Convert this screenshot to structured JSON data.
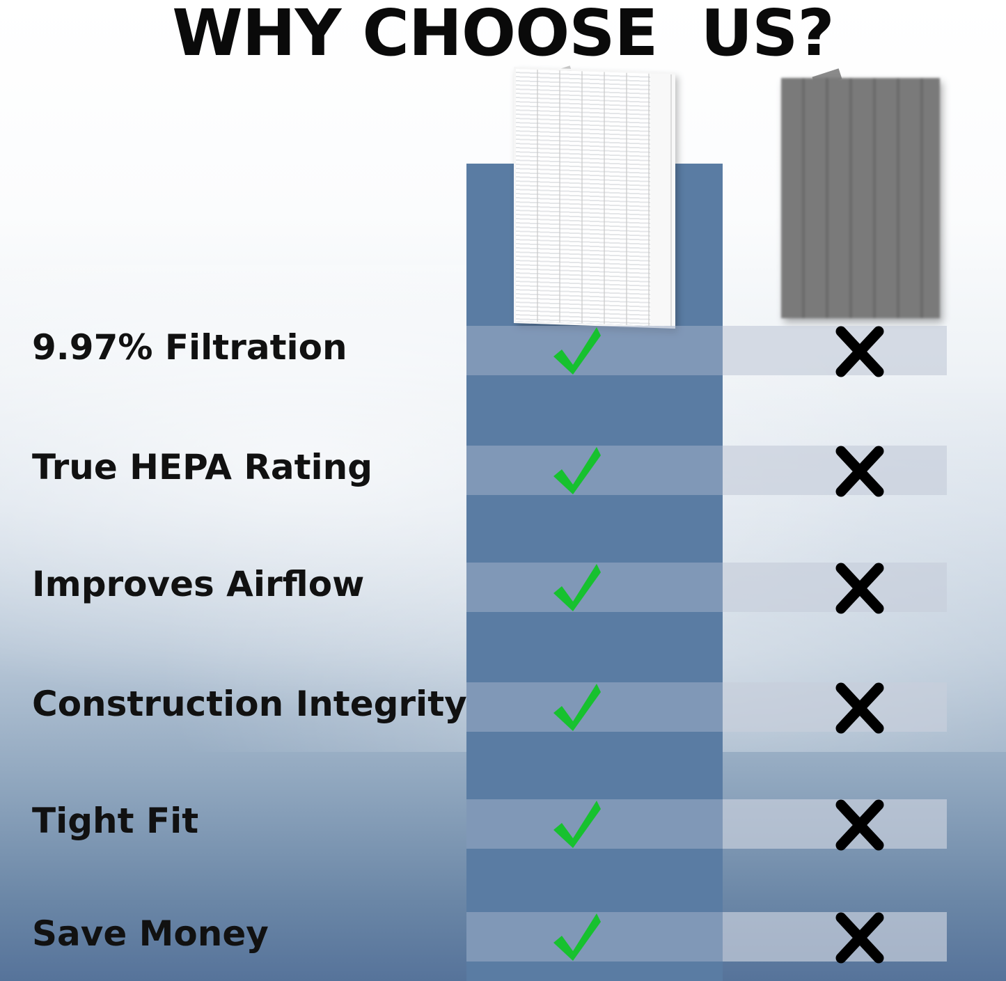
{
  "title": "WHY CHOOSE  US?",
  "colors": {
    "our_column": "#5a7ca3",
    "check": "#17c12f",
    "cross": "#000000"
  },
  "columns": [
    {
      "name": "our-filter",
      "image": "white-hepa-filter",
      "mark": "check-icon"
    },
    {
      "name": "other-filter",
      "image": "gray-blurred-filter",
      "mark": "cross-icon"
    }
  ],
  "rows": [
    {
      "label": "9.97% Filtration",
      "ours": true,
      "others": false
    },
    {
      "label": "True HEPA Rating",
      "ours": true,
      "others": false
    },
    {
      "label": "Improves Airflow",
      "ours": true,
      "others": false
    },
    {
      "label": "Construction Integrity",
      "ours": true,
      "others": false
    },
    {
      "label": "Tight Fit",
      "ours": true,
      "others": false
    },
    {
      "label": "Save Money",
      "ours": true,
      "others": false
    }
  ]
}
